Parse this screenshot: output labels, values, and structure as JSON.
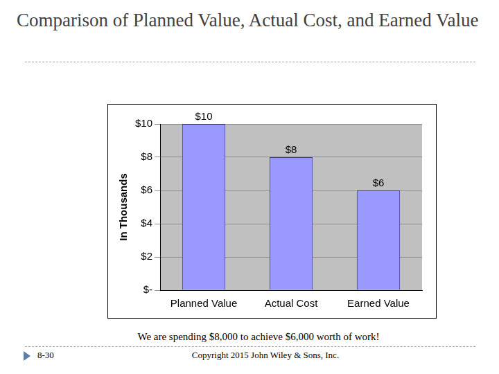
{
  "chart_data": {
    "type": "bar",
    "title": "Comparison of Planned Value, Actual Cost, and Earned Value",
    "y_label": "In Thousands",
    "categories": [
      "Planned Value",
      "Actual Cost",
      "Earned Value"
    ],
    "values": [
      10,
      8,
      6
    ],
    "value_labels": [
      "$10",
      "$8",
      "$6"
    ],
    "data_labels": true,
    "color": "#9999ff",
    "ylim": [
      0,
      10
    ],
    "yticks": [
      {
        "value": 0,
        "label": "$-"
      },
      {
        "value": 2,
        "label": "$2"
      },
      {
        "value": 4,
        "label": "$4"
      },
      {
        "value": 6,
        "label": "$6"
      },
      {
        "value": 8,
        "label": "$8"
      },
      {
        "value": 10,
        "label": "$10"
      }
    ],
    "grid": true
  },
  "caption": "We are spending $8,000 to achieve $6,000 worth of work!",
  "footer": {
    "page": "8-30",
    "copyright": "Copyright 2015 John Wiley & Sons, Inc."
  }
}
